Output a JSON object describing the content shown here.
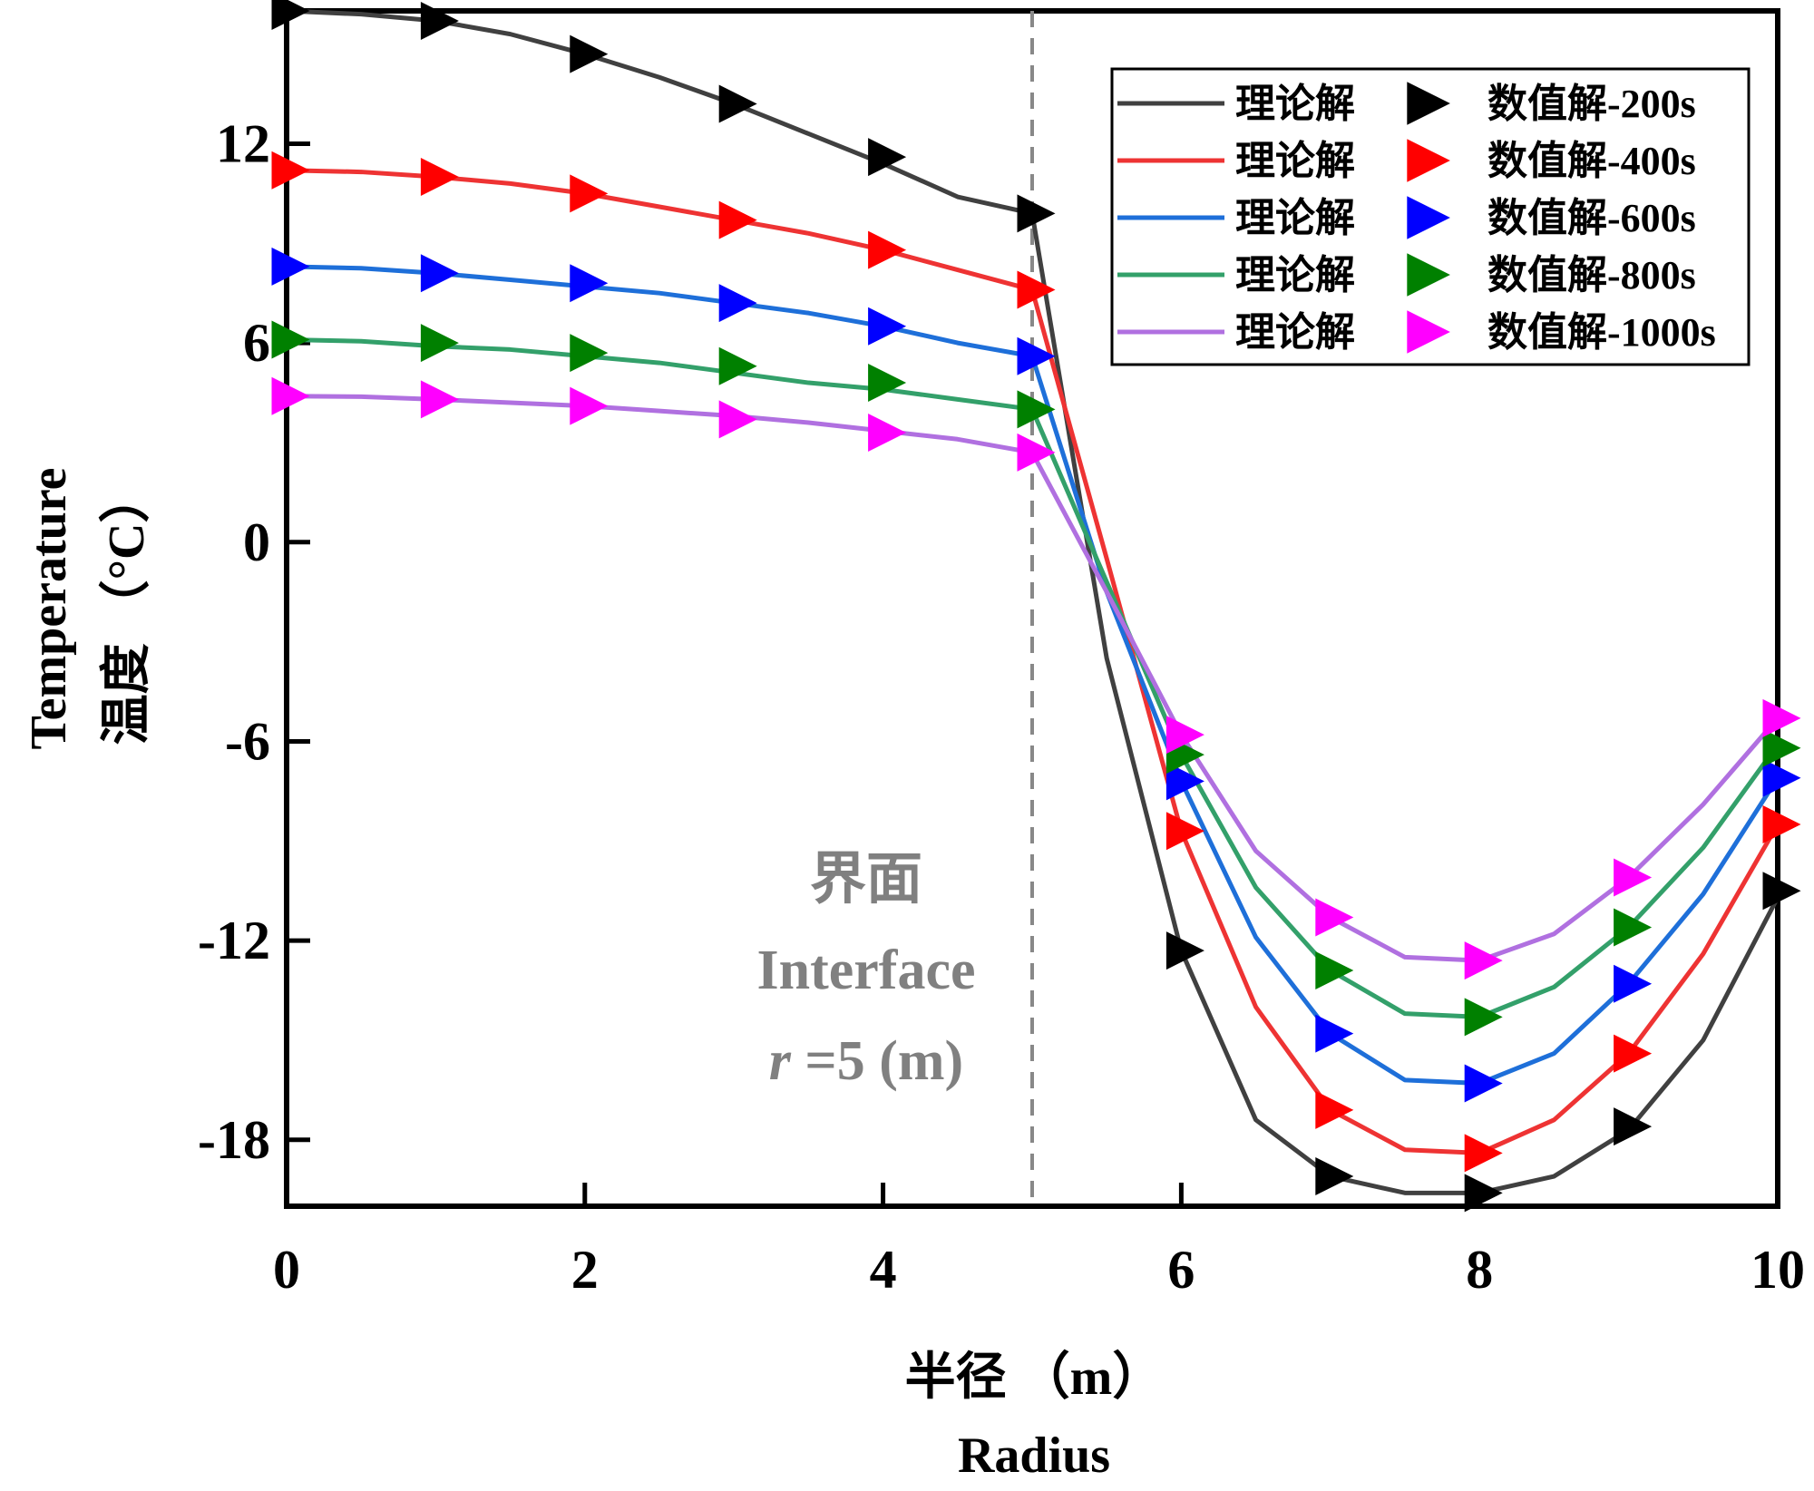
{
  "chart_data": {
    "type": "line",
    "xlabel_cn": "半径 （m）",
    "xlabel_en": "Radius",
    "ylabel_cn": "温度 （°C）",
    "ylabel_en": "Temperature",
    "xlim": [
      0,
      10
    ],
    "ylim": [
      -20,
      16
    ],
    "xticks": [
      0,
      2,
      4,
      6,
      8,
      10
    ],
    "yticks": [
      12,
      6,
      0,
      -6,
      -12,
      -18
    ],
    "annotation": {
      "line1": "界面",
      "line2": "Interface",
      "line3_var": "r",
      "line3_rest": " =5 (m)",
      "x": 5
    },
    "legend": {
      "placement": "top-right",
      "theory_label": "理论解"
    },
    "series": [
      {
        "theory_name": "理论解",
        "numeric_name": "数值解-200s",
        "line_color": "#404040",
        "marker_color": "#000000",
        "curve_x": [
          0,
          0.5,
          1,
          1.5,
          2,
          2.5,
          3,
          3.5,
          4,
          4.5,
          5,
          5.5,
          6,
          6.5,
          7,
          7.5,
          8,
          8.5,
          9,
          9.5,
          10
        ],
        "curve_y": [
          16.0,
          15.9,
          15.7,
          15.3,
          14.7,
          14.0,
          13.2,
          12.3,
          11.4,
          10.4,
          9.9,
          -3.5,
          -12.3,
          -17.4,
          -19.1,
          -19.6,
          -19.6,
          -19.1,
          -17.7,
          -15.0,
          -10.7
        ],
        "marker_x": [
          0,
          1,
          2,
          3,
          4,
          5,
          6,
          7,
          8,
          9,
          10
        ],
        "marker_y": [
          16.0,
          15.7,
          14.7,
          13.2,
          11.6,
          9.9,
          -12.3,
          -19.1,
          -19.6,
          -17.6,
          -10.5
        ]
      },
      {
        "theory_name": "理论解",
        "numeric_name": "数值解-400s",
        "line_color": "#ee3333",
        "marker_color": "#ff0000",
        "curve_x": [
          0,
          0.5,
          1,
          1.5,
          2,
          2.5,
          3,
          3.5,
          4,
          4.5,
          5,
          5.5,
          6,
          6.5,
          7,
          7.5,
          8,
          8.5,
          9,
          9.5,
          10
        ],
        "curve_y": [
          11.2,
          11.15,
          11.0,
          10.8,
          10.5,
          10.1,
          9.7,
          9.3,
          8.8,
          8.2,
          7.6,
          -0.5,
          -8.7,
          -14.0,
          -17.1,
          -18.3,
          -18.4,
          -17.4,
          -15.4,
          -12.4,
          -8.5
        ],
        "marker_x": [
          0,
          1,
          2,
          3,
          4,
          5,
          6,
          7,
          8,
          9,
          10
        ],
        "marker_y": [
          11.2,
          11.0,
          10.5,
          9.7,
          8.8,
          7.6,
          -8.7,
          -17.1,
          -18.4,
          -15.4,
          -8.5
        ]
      },
      {
        "theory_name": "理论解",
        "numeric_name": "数值解-600s",
        "line_color": "#1e6fd9",
        "marker_color": "#0000ff",
        "curve_x": [
          0,
          0.5,
          1,
          1.5,
          2,
          2.5,
          3,
          3.5,
          4,
          4.5,
          5,
          5.5,
          6,
          6.5,
          7,
          7.5,
          8,
          8.5,
          9,
          9.5,
          10
        ],
        "curve_y": [
          8.3,
          8.25,
          8.1,
          7.9,
          7.7,
          7.5,
          7.2,
          6.9,
          6.5,
          6.0,
          5.6,
          -1.5,
          -7.2,
          -11.9,
          -14.8,
          -16.2,
          -16.3,
          -15.4,
          -13.3,
          -10.6,
          -7.1
        ],
        "marker_x": [
          0,
          1,
          2,
          3,
          4,
          5,
          6,
          7,
          8,
          9,
          10
        ],
        "marker_y": [
          8.3,
          8.1,
          7.8,
          7.2,
          6.5,
          5.6,
          -7.2,
          -14.8,
          -16.3,
          -13.3,
          -7.1
        ]
      },
      {
        "theory_name": "理论解",
        "numeric_name": "数值解-800s",
        "line_color": "#33a06a",
        "marker_color": "#008000",
        "curve_x": [
          0,
          0.5,
          1,
          1.5,
          2,
          2.5,
          3,
          3.5,
          4,
          4.5,
          5,
          5.5,
          6,
          6.5,
          7,
          7.5,
          8,
          8.5,
          9,
          9.5,
          10
        ],
        "curve_y": [
          6.1,
          6.05,
          5.9,
          5.8,
          5.6,
          5.4,
          5.1,
          4.8,
          4.6,
          4.3,
          4.0,
          -1.2,
          -6.4,
          -10.4,
          -12.9,
          -14.2,
          -14.3,
          -13.4,
          -11.6,
          -9.2,
          -6.1
        ],
        "marker_x": [
          0,
          1,
          2,
          3,
          4,
          5,
          6,
          7,
          8,
          9,
          10
        ],
        "marker_y": [
          6.1,
          6.0,
          5.7,
          5.3,
          4.8,
          4.0,
          -6.4,
          -12.9,
          -14.3,
          -11.6,
          -6.2
        ]
      },
      {
        "theory_name": "理论解",
        "numeric_name": "数值解-1000s",
        "line_color": "#b070e0",
        "marker_color": "#ff00ff",
        "curve_x": [
          0,
          0.5,
          1,
          1.5,
          2,
          2.5,
          3,
          3.5,
          4,
          4.5,
          5,
          5.5,
          6,
          6.5,
          7,
          7.5,
          8,
          8.5,
          9,
          9.5,
          10
        ],
        "curve_y": [
          4.4,
          4.38,
          4.3,
          4.2,
          4.1,
          3.95,
          3.8,
          3.6,
          3.35,
          3.1,
          2.7,
          -1.5,
          -5.8,
          -9.3,
          -11.3,
          -12.5,
          -12.6,
          -11.8,
          -10.1,
          -7.9,
          -5.3
        ],
        "marker_x": [
          0,
          1,
          2,
          3,
          4,
          5,
          6,
          7,
          8,
          9,
          10
        ],
        "marker_y": [
          4.4,
          4.3,
          4.1,
          3.7,
          3.3,
          2.7,
          -5.8,
          -11.3,
          -12.6,
          -10.1,
          -5.3
        ]
      }
    ]
  }
}
